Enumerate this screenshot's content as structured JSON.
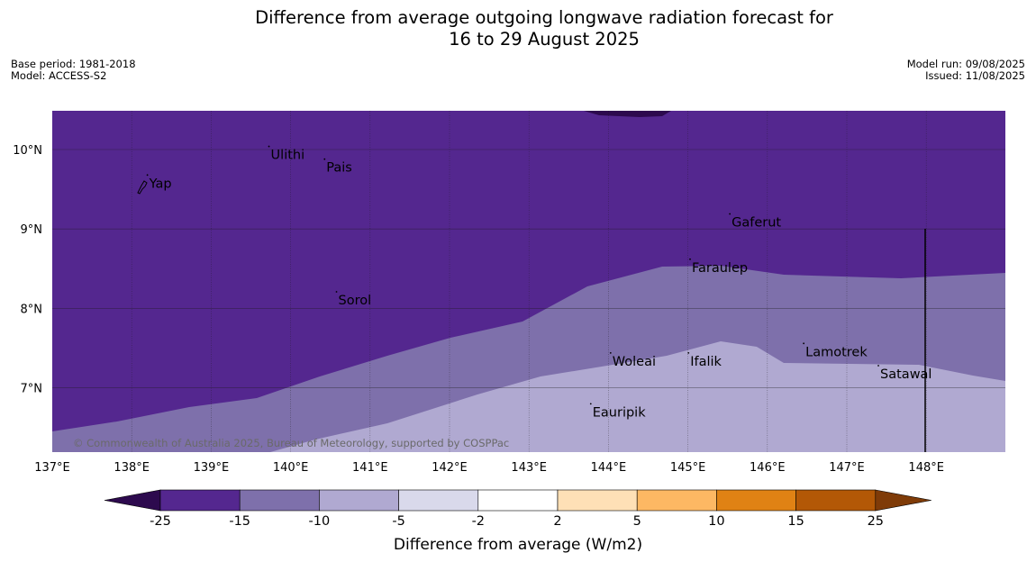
{
  "header": {
    "title_line1": "Difference from average outgoing longwave radiation forecast for",
    "title_line2": "16 to 29 August 2025",
    "base_period": "Base period: 1981-2018",
    "model": "Model: ACCESS-S2",
    "model_run": "Model run: 09/08/2025",
    "issued": "Issued: 11/08/2025"
  },
  "map": {
    "lon_range": [
      137,
      149
    ],
    "lat_range": [
      6.2,
      10.5
    ],
    "lon_ticks": [
      "137°E",
      "138°E",
      "139°E",
      "140°E",
      "141°E",
      "142°E",
      "143°E",
      "144°E",
      "145°E",
      "146°E",
      "147°E",
      "148°E"
    ],
    "lat_ticks": [
      "10°N",
      "9°N",
      "8°N",
      "7°N"
    ],
    "places": [
      {
        "name": "Ulithi",
        "lon": 139.75,
        "lat": 9.88
      },
      {
        "name": "Pais",
        "lon": 140.45,
        "lat": 9.72
      },
      {
        "name": "Yap",
        "lon": 138.22,
        "lat": 9.52
      },
      {
        "name": "Gaferut",
        "lon": 145.55,
        "lat": 9.03
      },
      {
        "name": "Faraulep",
        "lon": 145.05,
        "lat": 8.46
      },
      {
        "name": "Sorol",
        "lon": 140.6,
        "lat": 8.05
      },
      {
        "name": "Woleai",
        "lon": 144.05,
        "lat": 7.28
      },
      {
        "name": "Ifalik",
        "lon": 145.03,
        "lat": 7.28
      },
      {
        "name": "Lamotrek",
        "lon": 146.48,
        "lat": 7.4
      },
      {
        "name": "Satawal",
        "lon": 147.42,
        "lat": 7.12
      },
      {
        "name": "Eauripik",
        "lon": 143.8,
        "lat": 6.64
      }
    ],
    "copyright": "© Commonwealth of Australia 2025, Bureau of Meteorology, supported by COSPPac",
    "colors": {
      "lt_minus25": "#2d0a4e",
      "minus25_to_minus15": "#54278f",
      "minus15_to_minus10": "#7e70ab",
      "minus10_to_minus5": "#b0a9d1",
      "grid": "#222222",
      "line": "#000000"
    }
  },
  "legend": {
    "title": "Difference from average (W/m2)",
    "ticks": [
      "-25",
      "-15",
      "-10",
      "-5",
      "-2",
      "2",
      "5",
      "10",
      "15",
      "25"
    ],
    "colors": [
      "#2d0a4e",
      "#54278f",
      "#7e70ab",
      "#b0a9d1",
      "#d9d9eb",
      "#ffffff",
      "#fee0b6",
      "#fdb863",
      "#e08214",
      "#b35806",
      "#7f3b08"
    ]
  }
}
